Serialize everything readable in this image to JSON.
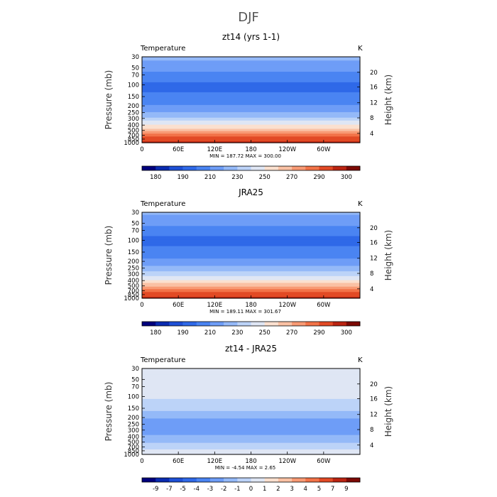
{
  "figure_title": "DJF",
  "chart_data": [
    {
      "type": "heatmap",
      "title": "zt14 (yrs 1-1)",
      "left_label": "Temperature",
      "right_label": "K",
      "ylabel": "Pressure (mb)",
      "ylabel_right": "Height (km)",
      "x_ticks": [
        "0",
        "60E",
        "120E",
        "180",
        "120W",
        "60W"
      ],
      "y_ticks": [
        "30",
        "50",
        "70",
        "100",
        "150",
        "200",
        "250",
        "300",
        "400",
        "500",
        "700",
        "850",
        "1000"
      ],
      "height_ticks": [
        "20",
        "16",
        "12",
        "8",
        "4"
      ],
      "stats": "MIN = 187.72   MAX = 300.00",
      "colorbar_labels": [
        "180",
        "190",
        "210",
        "230",
        "250",
        "270",
        "290",
        "300"
      ],
      "colors": [
        "#00007d",
        "#0a2bb0",
        "#1e50d6",
        "#2f69e8",
        "#4a84f2",
        "#6e9df7",
        "#94b9f8",
        "#bcd3f8",
        "#dfe6f4",
        "#fbe0cf",
        "#fac1a4",
        "#f89a74",
        "#f27348",
        "#e24a25",
        "#bb2412",
        "#7d0a05"
      ],
      "profile": [
        {
          "p": 30,
          "value": 226
        },
        {
          "p": 40,
          "value": 221
        },
        {
          "p": 50,
          "value": 217
        },
        {
          "p": 60,
          "value": 214
        },
        {
          "p": 70,
          "value": 211
        },
        {
          "p": 85,
          "value": 207
        },
        {
          "p": 100,
          "value": 203
        },
        {
          "p": 120,
          "value": 205
        },
        {
          "p": 150,
          "value": 208
        },
        {
          "p": 200,
          "value": 215
        },
        {
          "p": 250,
          "value": 224
        },
        {
          "p": 300,
          "value": 234
        },
        {
          "p": 400,
          "value": 250
        },
        {
          "p": 500,
          "value": 262
        },
        {
          "p": 600,
          "value": 271
        },
        {
          "p": 700,
          "value": 279
        },
        {
          "p": 850,
          "value": 287
        },
        {
          "p": 1000,
          "value": 294
        }
      ]
    },
    {
      "type": "heatmap",
      "title": "JRA25",
      "left_label": "Temperature",
      "right_label": "K",
      "ylabel": "Pressure (mb)",
      "ylabel_right": "Height (km)",
      "x_ticks": [
        "0",
        "60E",
        "120E",
        "180",
        "120W",
        "60W"
      ],
      "y_ticks": [
        "30",
        "50",
        "70",
        "100",
        "150",
        "200",
        "250",
        "300",
        "400",
        "500",
        "700",
        "850",
        "1000"
      ],
      "height_ticks": [
        "20",
        "16",
        "12",
        "8",
        "4"
      ],
      "stats": "MIN = 189.11   MAX = 301.67",
      "colorbar_labels": [
        "180",
        "190",
        "210",
        "230",
        "250",
        "270",
        "290",
        "300"
      ],
      "colors": [
        "#00007d",
        "#0a2bb0",
        "#1e50d6",
        "#2f69e8",
        "#4a84f2",
        "#6e9df7",
        "#94b9f8",
        "#bcd3f8",
        "#dfe6f4",
        "#fbe0cf",
        "#fac1a4",
        "#f89a74",
        "#f27348",
        "#e24a25",
        "#bb2412",
        "#7d0a05"
      ],
      "profile": [
        {
          "p": 30,
          "value": 225
        },
        {
          "p": 40,
          "value": 220
        },
        {
          "p": 50,
          "value": 216
        },
        {
          "p": 60,
          "value": 213
        },
        {
          "p": 70,
          "value": 210
        },
        {
          "p": 85,
          "value": 206
        },
        {
          "p": 100,
          "value": 203
        },
        {
          "p": 120,
          "value": 205
        },
        {
          "p": 150,
          "value": 209
        },
        {
          "p": 200,
          "value": 217
        },
        {
          "p": 250,
          "value": 226
        },
        {
          "p": 300,
          "value": 236
        },
        {
          "p": 400,
          "value": 251
        },
        {
          "p": 500,
          "value": 263
        },
        {
          "p": 600,
          "value": 272
        },
        {
          "p": 700,
          "value": 280
        },
        {
          "p": 850,
          "value": 288
        },
        {
          "p": 1000,
          "value": 295
        }
      ]
    },
    {
      "type": "heatmap",
      "title": "zt14 - JRA25",
      "left_label": "Temperature",
      "right_label": "K",
      "ylabel": "Pressure (mb)",
      "ylabel_right": "Height (km)",
      "x_ticks": [
        "0",
        "60E",
        "120E",
        "180",
        "120W",
        "60W"
      ],
      "y_ticks": [
        "30",
        "50",
        "70",
        "100",
        "150",
        "200",
        "250",
        "300",
        "400",
        "500",
        "700",
        "850",
        "1000"
      ],
      "height_ticks": [
        "20",
        "16",
        "12",
        "8",
        "4"
      ],
      "stats": "MIN =   -4.54   MAX =    2.65",
      "colorbar_labels": [
        "-9",
        "-7",
        "-5",
        "-4",
        "-3",
        "-2",
        "-1",
        "0",
        "1",
        "2",
        "3",
        "4",
        "5",
        "7",
        "9"
      ],
      "colors": [
        "#00007d",
        "#0a2bb0",
        "#1e50d6",
        "#2f69e8",
        "#4a84f2",
        "#6e9df7",
        "#94b9f8",
        "#bcd3f8",
        "#dfe6f4",
        "#fbe0cf",
        "#fac1a4",
        "#f89a74",
        "#f27348",
        "#e24a25",
        "#bb2412",
        "#7d0a05"
      ],
      "profile": [
        {
          "p": 30,
          "value": 0.6
        },
        {
          "p": 50,
          "value": 0.6
        },
        {
          "p": 70,
          "value": 0.7
        },
        {
          "p": 100,
          "value": 0.3
        },
        {
          "p": 150,
          "value": -0.8
        },
        {
          "p": 200,
          "value": -1.8
        },
        {
          "p": 250,
          "value": -2.6
        },
        {
          "p": 300,
          "value": -2.8
        },
        {
          "p": 400,
          "value": -1.6
        },
        {
          "p": 500,
          "value": -1.1
        },
        {
          "p": 700,
          "value": -0.4
        },
        {
          "p": 850,
          "value": 0.2
        },
        {
          "p": 1000,
          "value": 0.1
        }
      ]
    }
  ]
}
